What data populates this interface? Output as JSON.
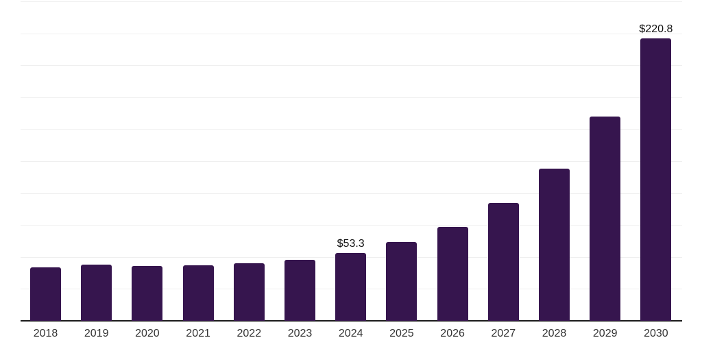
{
  "chart_data": {
    "type": "bar",
    "categories": [
      "2018",
      "2019",
      "2020",
      "2021",
      "2022",
      "2023",
      "2024",
      "2025",
      "2026",
      "2027",
      "2028",
      "2029",
      "2030"
    ],
    "values": [
      41.8,
      43.9,
      42.8,
      43.4,
      45.3,
      47.6,
      53.3,
      61.5,
      73.7,
      92.3,
      119.2,
      160.0,
      220.8
    ],
    "data_labels": {
      "2024": "$53.3",
      "2030": "$220.8"
    },
    "ylim": [
      0,
      250
    ],
    "grid_step": 25,
    "grid": true,
    "legend": "none",
    "y_axis_tick_labels": "none",
    "colors": {
      "bar": "#36154E",
      "axis": "#1a1a1a",
      "gridline": "#efefef",
      "x_tick_label": "#333333",
      "data_label": "#111111"
    }
  }
}
